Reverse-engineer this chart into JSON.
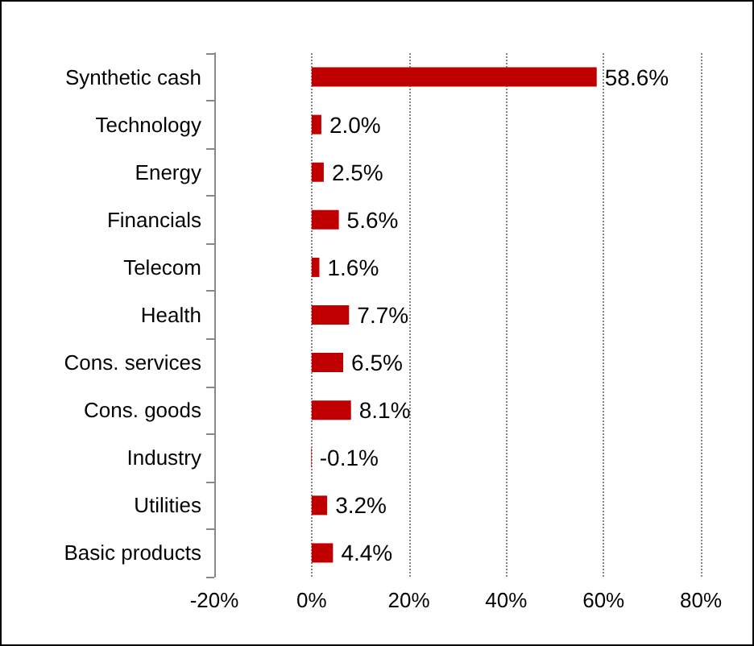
{
  "chart_data": {
    "type": "bar",
    "orientation": "horizontal",
    "categories": [
      "Synthetic cash",
      "Technology",
      "Energy",
      "Financials",
      "Telecom",
      "Health",
      "Cons. services",
      "Cons. goods",
      "Industry",
      "Utilities",
      "Basic products"
    ],
    "values": [
      58.6,
      2.0,
      2.5,
      5.6,
      1.6,
      7.7,
      6.5,
      8.1,
      -0.1,
      3.2,
      4.4
    ],
    "value_labels": [
      "58.6%",
      "2.0%",
      "2.5%",
      "5.6%",
      "1.6%",
      "7.7%",
      "6.5%",
      "8.1%",
      "-0.1%",
      "3.2%",
      "4.4%"
    ],
    "color": "#c00000",
    "xlim": [
      -20,
      80
    ],
    "xticks": [
      {
        "value": -20,
        "label": "-20%"
      },
      {
        "value": 0,
        "label": "0%"
      },
      {
        "value": 20,
        "label": "20%"
      },
      {
        "value": 40,
        "label": "40%"
      },
      {
        "value": 60,
        "label": "60%"
      },
      {
        "value": 80,
        "label": "80%"
      }
    ],
    "grid": "x"
  }
}
